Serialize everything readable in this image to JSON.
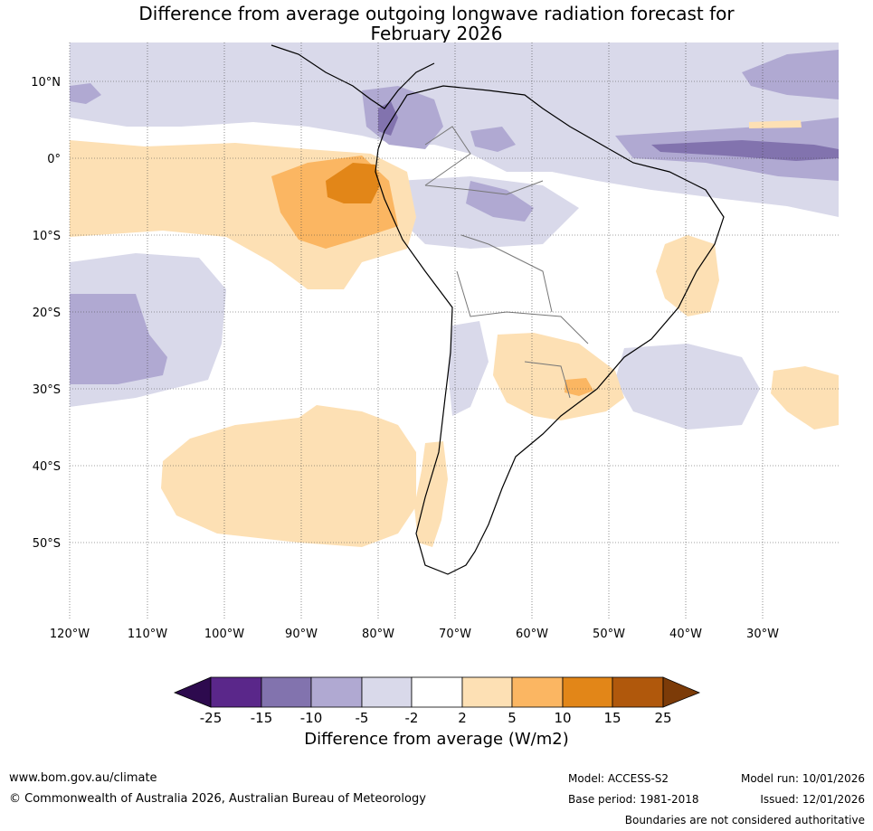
{
  "title": {
    "line1": "Difference from average outgoing longwave radiation forecast for",
    "line2": "February 2026"
  },
  "map": {
    "lat_ticks": [
      "10°N",
      "0°",
      "10°S",
      "20°S",
      "30°S",
      "40°S",
      "50°S"
    ],
    "lon_ticks": [
      "120°W",
      "110°W",
      "100°W",
      "90°W",
      "80°W",
      "70°W",
      "60°W",
      "50°W",
      "40°W",
      "30°W"
    ]
  },
  "colorbar": {
    "label": "Difference from average (W/m2)",
    "ticks": [
      "-25",
      "-15",
      "-10",
      "-5",
      "-2",
      "2",
      "5",
      "10",
      "15",
      "25"
    ],
    "colors": {
      "lt_m25": "#2d0a4e",
      "m25_m15": "#5a278a",
      "m15_m10": "#8273ae",
      "m10_m5": "#b0a9d2",
      "m5_m2": "#d9d9ea",
      "m2_2": "#ffffff",
      "p2_5": "#fde0b4",
      "p5_10": "#fbb662",
      "p10_15": "#e28618",
      "p15_25": "#b0580c",
      "gt_25": "#7c3b08"
    }
  },
  "footer": {
    "website": "www.bom.gov.au/climate",
    "copyright": "© Commonwealth of Australia 2026, Australian Bureau of Meteorology",
    "model": "Model: ACCESS-S2",
    "base_period": "Base period: 1981-2018",
    "model_run": "Model run: 10/01/2026",
    "issued": "Issued: 12/01/2026",
    "disclaimer": "Boundaries are not considered authoritative"
  }
}
